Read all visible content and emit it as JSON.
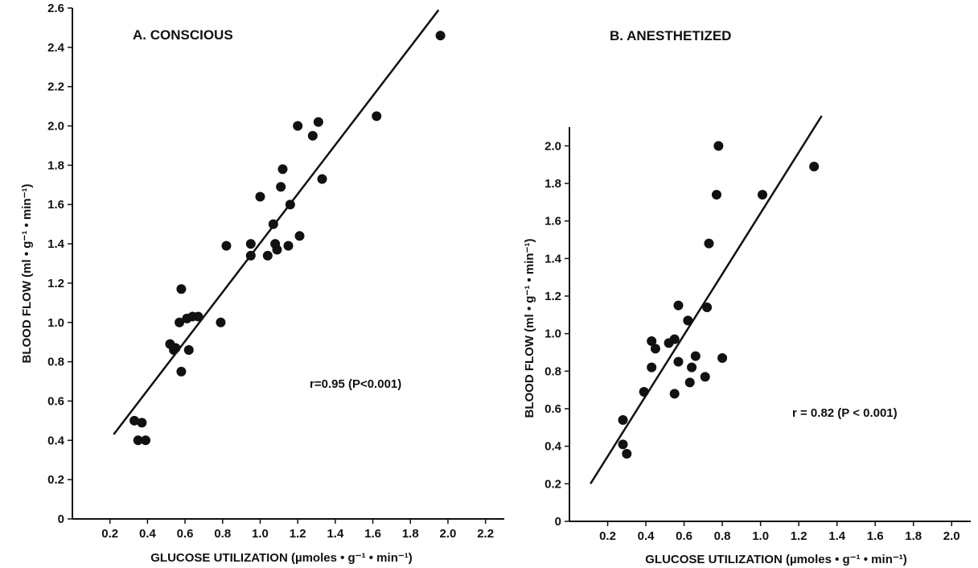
{
  "chart_data": [
    {
      "type": "scatter",
      "title": "A. CONSCIOUS",
      "xlabel": "GLUCOSE UTILIZATION (µmoles • g⁻¹ • min⁻¹)",
      "ylabel": "BLOOD FLOW (ml • g⁻¹ • min⁻¹)",
      "xlim": [
        0,
        2.3
      ],
      "ylim": [
        0,
        2.6
      ],
      "xticks": [
        "0.2",
        "0.4",
        "0.6",
        "0.8",
        "1.0",
        "1.2",
        "1.4",
        "1.6",
        "1.8",
        "2.0",
        "2.2"
      ],
      "yticks": [
        "0",
        "0.2",
        "0.4",
        "0.6",
        "0.8",
        "1.0",
        "1.2",
        "1.4",
        "1.6",
        "1.8",
        "2.0",
        "2.2",
        "2.4",
        "2.6"
      ],
      "annotation": "r=0.95 (P<0.001)",
      "grid": false,
      "points": [
        {
          "x": 0.33,
          "y": 0.5
        },
        {
          "x": 0.37,
          "y": 0.49
        },
        {
          "x": 0.35,
          "y": 0.4
        },
        {
          "x": 0.39,
          "y": 0.4
        },
        {
          "x": 0.52,
          "y": 0.89
        },
        {
          "x": 0.55,
          "y": 0.87
        },
        {
          "x": 0.54,
          "y": 0.86
        },
        {
          "x": 0.58,
          "y": 0.75
        },
        {
          "x": 0.57,
          "y": 1.0
        },
        {
          "x": 0.58,
          "y": 1.17
        },
        {
          "x": 0.61,
          "y": 1.02
        },
        {
          "x": 0.64,
          "y": 1.03
        },
        {
          "x": 0.67,
          "y": 1.03
        },
        {
          "x": 0.62,
          "y": 0.86
        },
        {
          "x": 0.79,
          "y": 1.0
        },
        {
          "x": 0.82,
          "y": 1.39
        },
        {
          "x": 0.95,
          "y": 1.4
        },
        {
          "x": 0.95,
          "y": 1.34
        },
        {
          "x": 1.0,
          "y": 1.64
        },
        {
          "x": 1.04,
          "y": 1.34
        },
        {
          "x": 1.07,
          "y": 1.5
        },
        {
          "x": 1.08,
          "y": 1.4
        },
        {
          "x": 1.09,
          "y": 1.37
        },
        {
          "x": 1.11,
          "y": 1.69
        },
        {
          "x": 1.12,
          "y": 1.78
        },
        {
          "x": 1.15,
          "y": 1.39
        },
        {
          "x": 1.16,
          "y": 1.6
        },
        {
          "x": 1.2,
          "y": 2.0
        },
        {
          "x": 1.21,
          "y": 1.44
        },
        {
          "x": 1.28,
          "y": 1.95
        },
        {
          "x": 1.31,
          "y": 2.02
        },
        {
          "x": 1.33,
          "y": 1.73
        },
        {
          "x": 1.62,
          "y": 2.05
        },
        {
          "x": 1.96,
          "y": 2.46
        }
      ],
      "fit_line": {
        "x": [
          0.22,
          1.95
        ],
        "y": [
          0.43,
          2.59
        ]
      }
    },
    {
      "type": "scatter",
      "title": "B. ANESTHETIZED",
      "xlabel": "GLUCOSE UTILIZATION (µmoles • g⁻¹ • min⁻¹)",
      "ylabel": "BLOOD FLOW (ml • g⁻¹ • min⁻¹)",
      "xlim": [
        0,
        2.1
      ],
      "ylim": [
        0,
        2.1
      ],
      "xticks": [
        "0.2",
        "0.4",
        "0.6",
        "0.8",
        "1.0",
        "1.2",
        "1.4",
        "1.6",
        "1.8",
        "2.0"
      ],
      "yticks": [
        "0",
        "0.2",
        "0.4",
        "0.6",
        "0.8",
        "1.0",
        "1.2",
        "1.4",
        "1.6",
        "1.8",
        "2.0"
      ],
      "annotation": "r = 0.82 (P < 0.001)",
      "grid": false,
      "points": [
        {
          "x": 0.28,
          "y": 0.54
        },
        {
          "x": 0.28,
          "y": 0.41
        },
        {
          "x": 0.3,
          "y": 0.36
        },
        {
          "x": 0.39,
          "y": 0.69
        },
        {
          "x": 0.43,
          "y": 0.82
        },
        {
          "x": 0.43,
          "y": 0.96
        },
        {
          "x": 0.45,
          "y": 0.92
        },
        {
          "x": 0.52,
          "y": 0.95
        },
        {
          "x": 0.55,
          "y": 0.97
        },
        {
          "x": 0.55,
          "y": 0.68
        },
        {
          "x": 0.57,
          "y": 0.85
        },
        {
          "x": 0.57,
          "y": 1.15
        },
        {
          "x": 0.62,
          "y": 1.07
        },
        {
          "x": 0.63,
          "y": 0.74
        },
        {
          "x": 0.64,
          "y": 0.82
        },
        {
          "x": 0.66,
          "y": 0.88
        },
        {
          "x": 0.71,
          "y": 0.77
        },
        {
          "x": 0.72,
          "y": 1.14
        },
        {
          "x": 0.73,
          "y": 1.48
        },
        {
          "x": 0.77,
          "y": 1.74
        },
        {
          "x": 0.78,
          "y": 2.0
        },
        {
          "x": 0.8,
          "y": 0.87
        },
        {
          "x": 1.01,
          "y": 1.74
        },
        {
          "x": 1.28,
          "y": 1.89
        }
      ],
      "fit_line": {
        "x": [
          0.11,
          1.32
        ],
        "y": [
          0.2,
          2.16
        ]
      }
    }
  ]
}
